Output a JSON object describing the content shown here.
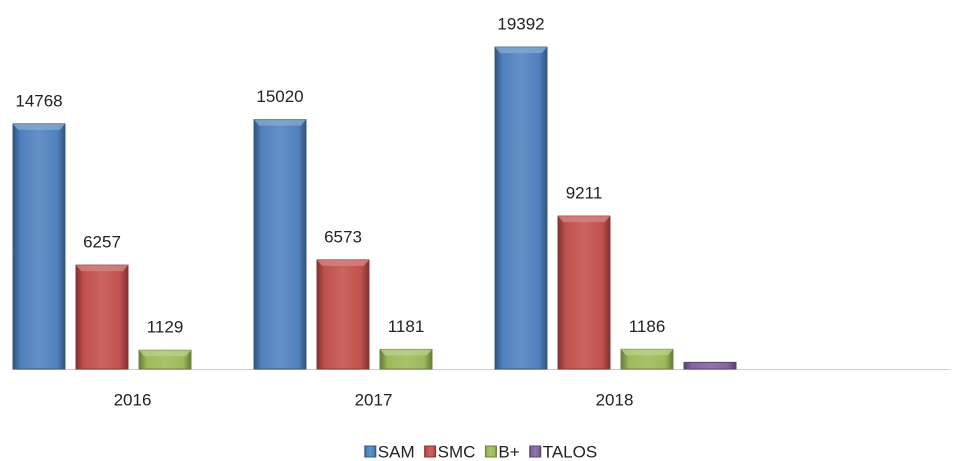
{
  "chart_data": {
    "type": "bar",
    "categories": [
      "2016",
      "2017",
      "2018"
    ],
    "series": [
      {
        "name": "SAM",
        "color": "#4f81bd",
        "values": [
          14768,
          15020,
          19392
        ]
      },
      {
        "name": "SMC",
        "color": "#c0504d",
        "values": [
          6257,
          6573,
          9211
        ]
      },
      {
        "name": "B+",
        "color": "#9bbb59",
        "values": [
          1129,
          1181,
          1186
        ]
      },
      {
        "name": "TALOS",
        "color": "#8064a2",
        "values": [
          null,
          null,
          400
        ],
        "data_labels": false
      }
    ],
    "ylim": [
      0,
      20000
    ],
    "legend": "bottom"
  }
}
